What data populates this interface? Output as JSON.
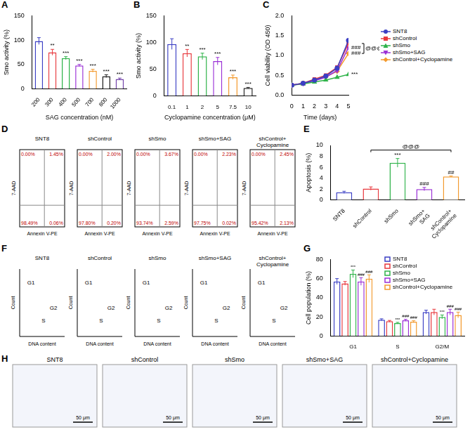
{
  "chart_data": [
    {
      "panel_label": "A",
      "type": "bar",
      "x_label": "SAG concentration (nM)",
      "y_label": "Smo activity (%)",
      "categories": [
        "200",
        "300",
        "400",
        "500",
        "700",
        "800",
        "1000"
      ],
      "values": [
        98,
        75,
        63,
        48,
        37,
        26,
        20
      ],
      "error": [
        7,
        6,
        3,
        2,
        3,
        3,
        2
      ],
      "annotations": [
        null,
        "**",
        "***",
        "***",
        "***",
        "***",
        "***"
      ],
      "colors": [
        "#3b3fc4",
        "#e8383d",
        "#2fb34a",
        "#9a2fd6",
        "#f39a2e",
        "#222222",
        "#6f3fa8"
      ],
      "ylim": [
        0,
        150
      ],
      "yticks": [
        0,
        50,
        100,
        150
      ],
      "grid": false
    },
    {
      "panel_label": "B",
      "type": "bar",
      "x_label": "Cyclopamine concentration (μM)",
      "y_label": "Smo activity (%)",
      "categories": [
        "0.1",
        "1",
        "2",
        "5",
        "7.5",
        "10"
      ],
      "values": [
        97,
        80,
        74,
        65,
        35,
        15
      ],
      "error": [
        10,
        7,
        6,
        7,
        4,
        1
      ],
      "annotations": [
        null,
        "**",
        "***",
        "***",
        "***",
        "***"
      ],
      "colors": [
        "#3b3fc4",
        "#e8383d",
        "#2fb34a",
        "#9a2fd6",
        "#f39a2e",
        "#222222"
      ],
      "ylim": [
        0,
        150
      ],
      "yticks": [
        0,
        50,
        100,
        150
      ],
      "grid": false
    },
    {
      "panel_label": "C",
      "type": "line",
      "x_label": "Time (days)",
      "y_label": "Cell viability (OD 450)",
      "x": [
        0,
        1,
        2,
        3,
        4,
        5
      ],
      "series": [
        {
          "name": "SNT8",
          "color": "#3b3fc4",
          "marker": "circle",
          "values": [
            0.25,
            0.3,
            0.38,
            0.48,
            0.68,
            1.38
          ]
        },
        {
          "name": "shControl",
          "color": "#e8383d",
          "marker": "square",
          "values": [
            0.25,
            0.3,
            0.4,
            0.5,
            0.7,
            1.3
          ]
        },
        {
          "name": "shSmo",
          "color": "#2fb34a",
          "marker": "triangle",
          "values": [
            0.25,
            0.28,
            0.33,
            0.38,
            0.45,
            0.52
          ],
          "annotation": "***"
        },
        {
          "name": "shSmo+SAG",
          "color": "#9a2fd6",
          "marker": "triangle-down",
          "values": [
            0.25,
            0.29,
            0.36,
            0.45,
            0.62,
            1.2
          ],
          "annotation": "###"
        },
        {
          "name": "shControl+Cyclopamine",
          "color": "#f39a2e",
          "marker": "diamond",
          "values": [
            0.25,
            0.3,
            0.37,
            0.46,
            0.6,
            1.05
          ],
          "annotation": "###"
        }
      ],
      "brackets": [
        {
          "text": "@@@",
          "between": [
            "shControl",
            "shControl+Cyclopamine"
          ]
        }
      ],
      "xlim": [
        0,
        5
      ],
      "xticks": [
        0,
        1,
        2,
        3,
        4,
        5
      ],
      "ylim": [
        0,
        2
      ],
      "yticks": [
        {
          "value": 0,
          "label": "0.0"
        },
        {
          "value": 0.5,
          "label": "0.5"
        },
        {
          "value": 1,
          "label": "1.0"
        },
        {
          "value": 1.5,
          "label": "1.5"
        },
        {
          "value": 2,
          "label": "2.0"
        }
      ],
      "legend": "right",
      "grid": false
    },
    {
      "panel_label": "E",
      "type": "bar",
      "y_label": "Apoptosis (%)",
      "categories": [
        "SNT8",
        "shControl",
        "shSmo",
        "shSmo+SAG",
        "shControl+Cyclopamine"
      ],
      "values": [
        1.4,
        2.1,
        6.8,
        2.0,
        4.3
      ],
      "error": [
        0.2,
        0.3,
        0.8,
        0.3,
        0.1
      ],
      "annotations": [
        null,
        null,
        "***",
        "###",
        "##"
      ],
      "brackets": [
        {
          "text": "@@@",
          "between": [
            "shControl",
            "shControl+Cyclopamine"
          ]
        }
      ],
      "colors": [
        "#3b3fc4",
        "#e8383d",
        "#2fb34a",
        "#9a2fd6",
        "#f39a2e"
      ],
      "ylim": [
        0,
        10
      ],
      "yticks": [
        0,
        2,
        4,
        6,
        8,
        10
      ],
      "grid": false
    },
    {
      "panel_label": "G",
      "type": "bar",
      "y_label": "Cell population (%)",
      "categories": [
        "G1",
        "S",
        "G2/M"
      ],
      "series": [
        {
          "name": "SNT8",
          "color": "#3b3fc4",
          "values": [
            57,
            17,
            25
          ],
          "error": [
            3,
            1,
            2
          ]
        },
        {
          "name": "shControl",
          "color": "#e8383d",
          "values": [
            55,
            15.5,
            25
          ],
          "error": [
            2,
            0.8,
            3
          ]
        },
        {
          "name": "shSmo",
          "color": "#2fb34a",
          "values": [
            65,
            13.5,
            20
          ],
          "error": [
            4,
            0.8,
            2
          ],
          "annotations": [
            "***",
            "***",
            "***"
          ]
        },
        {
          "name": "shSmo+SAG",
          "color": "#9a2fd6",
          "values": [
            57,
            16.5,
            25
          ],
          "error": [
            4,
            1,
            3
          ],
          "annotations": [
            "###",
            "###",
            "###"
          ]
        },
        {
          "name": "shControl+Cyclopamine",
          "color": "#f39a2e",
          "values": [
            60,
            15,
            22
          ],
          "error": [
            4,
            1,
            3
          ],
          "annotations": [
            "###",
            "###",
            "###"
          ]
        }
      ],
      "ylim": [
        0,
        80
      ],
      "yticks": [
        0,
        20,
        40,
        60,
        80
      ],
      "legend": "top-right",
      "grid": false
    }
  ],
  "flow_cytometry": {
    "panel_label": "D",
    "x_label": "Annexin V-PE",
    "y_label": "7-AAD",
    "panels": [
      {
        "title": "SNT8",
        "upper_left": "0.00%",
        "upper_right": "1.45%",
        "lower_left": "98.49%",
        "lower_right": "0.06%"
      },
      {
        "title": "shControl",
        "upper_left": "0.00%",
        "upper_right": "2.00%",
        "lower_left": "97.80%",
        "lower_right": "0.20%"
      },
      {
        "title": "shSmo",
        "upper_left": "0.00%",
        "upper_right": "3.67%",
        "lower_left": "93.74%",
        "lower_right": "2.59%"
      },
      {
        "title": "shSmo+SAG",
        "upper_left": "0.00%",
        "upper_right": "2.23%",
        "lower_left": "97.75%",
        "lower_right": "0.02%"
      },
      {
        "title": "shControl+Cyclopamine",
        "upper_left": "0.00%",
        "upper_right": "2.45%",
        "lower_left": "95.42%",
        "lower_right": "2.13%"
      }
    ]
  },
  "cell_cycle": {
    "panel_label": "F",
    "x_label": "DNA content",
    "y_label": "Count",
    "panels": [
      {
        "title": "SNT8",
        "peaks": [
          "G1",
          "S",
          "G2"
        ]
      },
      {
        "title": "shControl",
        "peaks": [
          "G1",
          "S",
          "G2"
        ]
      },
      {
        "title": "shSmo",
        "peaks": [
          "G1",
          "S",
          "G2"
        ]
      },
      {
        "title": "shSmo+SAG",
        "peaks": [
          "G1",
          "S",
          "G2"
        ]
      },
      {
        "title": "shControl+Cyclopamine",
        "peaks": [
          "G1",
          "S",
          "G2"
        ]
      }
    ]
  },
  "images": {
    "panel_label": "H",
    "scale_bar": "50 μm",
    "panels": [
      "SNT8",
      "shControl",
      "shSmo",
      "shSmo+SAG",
      "shControl+Cyclopamine"
    ]
  }
}
